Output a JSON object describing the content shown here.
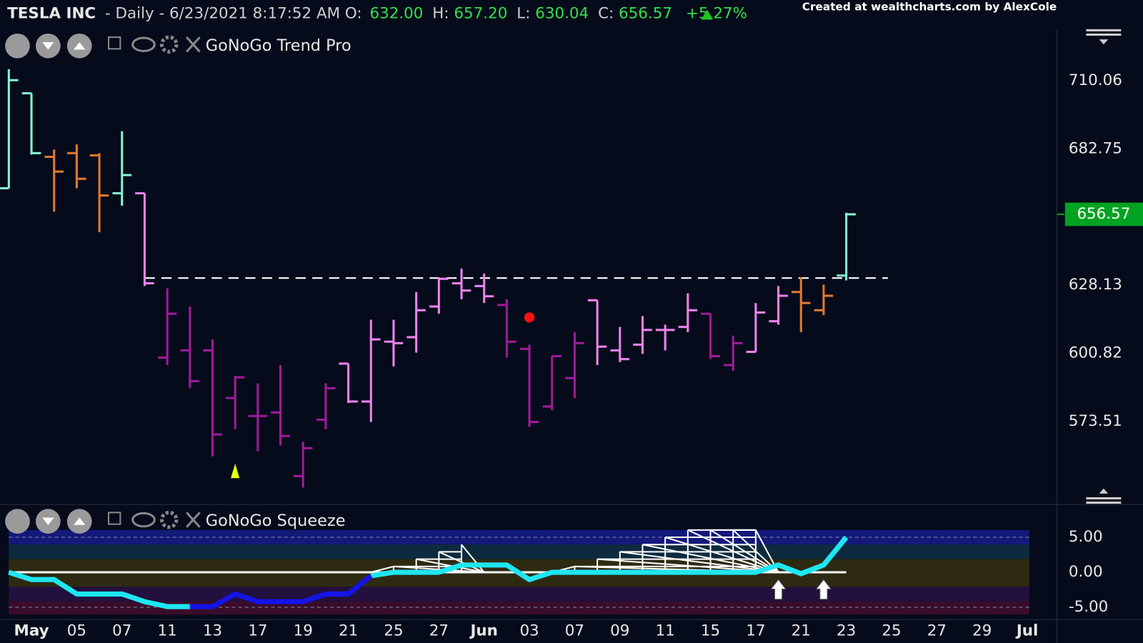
{
  "header": {
    "symbol": "TESLA INC",
    "info": "- Daily - 6/23/2021 8:17:52 AM O:",
    "open": "632.00",
    "high_label": "H:",
    "high": "657.20",
    "low_label": "L:",
    "low": "630.04",
    "close_label": "C:",
    "close": "656.57",
    "change": "+5.27%",
    "credit": "Created at wealthcharts.com by AlexCole"
  },
  "chart_data": [
    {
      "type": "ohlc",
      "title": "GoNoGo Trend Pro",
      "open": [
        667.0,
        705.1,
        679.6,
        681.1,
        680.2,
        665.0,
        665.0,
        599.1,
        602.0,
        602.0,
        582.9,
        575.7,
        577.1,
        551.6,
        574.2,
        596.7,
        581.5,
        605.5,
        607.3,
        619.6,
        628.9,
        627.8,
        620.2,
        602.6,
        579.5,
        590.9,
        622.1,
        602.0,
        604.3,
        610.2,
        611.4,
        616.7,
        596.1,
        601.4,
        613.7,
        625.4,
        618.1,
        632.0
      ],
      "high": [
        714.75,
        705.1,
        682.5,
        684.6,
        681.1,
        689.9,
        665.0,
        626.9,
        619.6,
        606.4,
        591.8,
        588.8,
        596.1,
        565.4,
        588.8,
        596.7,
        614.3,
        614.3,
        625.4,
        631.3,
        634.8,
        632.8,
        622.5,
        604.3,
        599.7,
        609.3,
        622.1,
        611.4,
        615.8,
        612.3,
        624.9,
        616.7,
        607.9,
        621.0,
        627.8,
        631.3,
        628.4,
        657.2
      ],
      "low": [
        667.0,
        680.5,
        657.6,
        667.0,
        649.4,
        660.0,
        627.8,
        596.1,
        586.8,
        559.5,
        570.4,
        561.6,
        563.9,
        547.0,
        570.4,
        580.9,
        573.3,
        595.6,
        601.1,
        616.7,
        622.5,
        621.0,
        599.1,
        571.3,
        578.0,
        582.9,
        596.1,
        597.3,
        600.6,
        602.0,
        609.3,
        598.5,
        593.8,
        601.4,
        612.3,
        609.3,
        616.1,
        630.04
      ],
      "close": [
        710.35,
        681.1,
        673.7,
        670.8,
        664.1,
        672.3,
        628.9,
        616.7,
        589.7,
        568.3,
        591.2,
        575.7,
        567.7,
        562.8,
        586.8,
        581.5,
        606.4,
        604.9,
        618.1,
        630.7,
        626.0,
        623.7,
        605.5,
        573.3,
        599.7,
        604.9,
        603.5,
        598.5,
        610.2,
        610.2,
        618.1,
        599.7,
        604.9,
        617.2,
        623.9,
        621.0,
        623.9,
        656.57
      ],
      "colors": [
        "#86f5cf",
        "#86f5cf",
        "#e07a2e",
        "#e07a2e",
        "#e07a2e",
        "#86f5cf",
        "#ee82ee",
        "#a01a9a",
        "#a01a9a",
        "#a01a9a",
        "#a01a9a",
        "#a01a9a",
        "#a01a9a",
        "#a01a9a",
        "#a01a9a",
        "#ee82ee",
        "#ee82ee",
        "#ee82ee",
        "#ee82ee",
        "#ee82ee",
        "#ee82ee",
        "#ee82ee",
        "#a01a9a",
        "#a01a9a",
        "#a01a9a",
        "#a01a9a",
        "#ee82ee",
        "#ee82ee",
        "#ee82ee",
        "#ee82ee",
        "#ee82ee",
        "#a01a9a",
        "#a01a9a",
        "#ee82ee",
        "#ee82ee",
        "#e07a2e",
        "#e07a2e",
        "#86f5cf"
      ],
      "xlim": [
        -0.39,
        46.31
      ],
      "ylim": [
        540.8,
        730.8
      ],
      "yticks": [
        710.06,
        682.75,
        628.13,
        600.82,
        573.51
      ],
      "hline": {
        "value": 631.0,
        "x": [
          6,
          38.84
        ]
      },
      "markers": [
        {
          "x": 23,
          "value": 615.2,
          "color": "#ff1010",
          "shape": "circle"
        },
        {
          "x": 10,
          "value": 553.7,
          "color": "#e6ff10",
          "shape": "triangle"
        }
      ],
      "last_color": "#00a321"
    },
    {
      "type": "squeeze",
      "title": "GoNoGo Squeeze",
      "series": [
        {
          "color": "#1ee6f0",
          "values": [
            0,
            -1.04,
            -1.04,
            -3.1,
            -3.1,
            -3.1,
            -4.2,
            -4.9,
            -4.9,
            null,
            null,
            null,
            null,
            null,
            null,
            null,
            -0.5,
            0,
            0,
            0,
            1.04,
            1.04,
            1.04,
            -1.04,
            0,
            0,
            0,
            0,
            0,
            0,
            0,
            0,
            0,
            0,
            1.04,
            -0.2,
            1.04,
            5.0
          ]
        },
        {
          "color": "#1414e6",
          "values": [
            null,
            null,
            null,
            null,
            null,
            null,
            null,
            null,
            -4.9,
            -4.9,
            -3.1,
            -4.2,
            -4.2,
            -4.2,
            -3.1,
            -3.1,
            -0.5,
            null,
            null,
            null,
            null,
            null,
            null,
            null,
            null,
            null,
            null,
            null,
            null,
            null,
            null,
            null,
            null,
            null,
            null,
            null,
            null,
            null
          ]
        }
      ],
      "grid": [
        null,
        null,
        null,
        null,
        null,
        null,
        null,
        null,
        null,
        null,
        null,
        null,
        null,
        null,
        null,
        null,
        null,
        0.83,
        1.88,
        2.92,
        3.96,
        null,
        null,
        null,
        null,
        0.83,
        1.88,
        2.92,
        3.96,
        5.0,
        6.04,
        6.04,
        6.04,
        6.04,
        null,
        null,
        null,
        null
      ],
      "arrows_x": [
        34,
        36
      ],
      "xlim": [
        -0.39,
        46.31
      ],
      "ylim": [
        -6.56,
        6.04
      ],
      "yticks": [
        {
          "value": 5,
          "label": "5.00"
        },
        {
          "value": 0,
          "label": "0.00"
        },
        {
          "value": -5,
          "label": "-5.00"
        }
      ],
      "xticks": [
        {
          "value": 1,
          "label": "May"
        },
        {
          "value": 3,
          "label": "05"
        },
        {
          "value": 5,
          "label": "07"
        },
        {
          "value": 7,
          "label": "11"
        },
        {
          "value": 9,
          "label": "13"
        },
        {
          "value": 11,
          "label": "17"
        },
        {
          "value": 13,
          "label": "19"
        },
        {
          "value": 15,
          "label": "21"
        },
        {
          "value": 17,
          "label": "25"
        },
        {
          "value": 19,
          "label": "27"
        },
        {
          "value": 21,
          "label": "Jun"
        },
        {
          "value": 23,
          "label": "03"
        },
        {
          "value": 25,
          "label": "07"
        },
        {
          "value": 27,
          "label": "09"
        },
        {
          "value": 29,
          "label": "11"
        },
        {
          "value": 31,
          "label": "15"
        },
        {
          "value": 33,
          "label": "17"
        },
        {
          "value": 35,
          "label": "21"
        },
        {
          "value": 37,
          "label": "23"
        },
        {
          "value": 39,
          "label": "25"
        },
        {
          "value": 41,
          "label": "27"
        },
        {
          "value": 43,
          "label": "29"
        },
        {
          "value": 45,
          "label": "Jul"
        }
      ]
    }
  ]
}
